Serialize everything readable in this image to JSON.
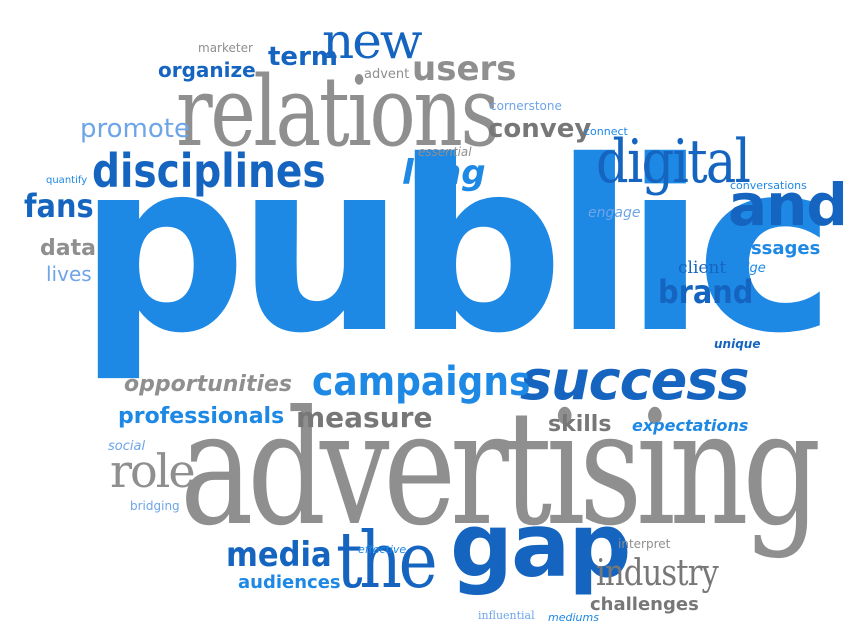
{
  "colors": {
    "dark_blue": "#1565c0",
    "mid_blue": "#1e88e5",
    "light_blue": "#6ea5e8",
    "grey": "#8f8f8f",
    "dark_grey": "#777777",
    "background": "#ffffff"
  },
  "words": {
    "public": "public",
    "advertising": "advertising",
    "relations": "relations",
    "success": "success",
    "gap": "gap",
    "the": "the",
    "and": "and",
    "digital": "digital",
    "disciplines": "disciplines",
    "campaigns": "campaigns",
    "new": "new",
    "users": "users",
    "brand": "brand",
    "media": "media",
    "role": "role",
    "measure": "measure",
    "industry": "industry",
    "fans": "fans",
    "long": "long",
    "promote": "promote",
    "convey": "convey",
    "term": "term",
    "organize": "organize",
    "professionals": "professionals",
    "opportunities": "opportunities",
    "skills": "skills",
    "expectations": "expectations",
    "challenges": "challenges",
    "audiences": "audiences",
    "data": "data",
    "lives": "lives",
    "messages": "messages",
    "client": "client",
    "bridge": "bridge",
    "engage": "engage",
    "conversations": "conversations",
    "unique": "unique",
    "connect": "connect",
    "cornerstone": "cornerstone",
    "essential": "essential",
    "advent": "advent",
    "marketer": "marketer",
    "quantify": "quantify",
    "social": "social",
    "bridging": "bridging",
    "effective": "effective",
    "interpret": "interpret",
    "influential": "influential",
    "mediums": "mediums"
  }
}
